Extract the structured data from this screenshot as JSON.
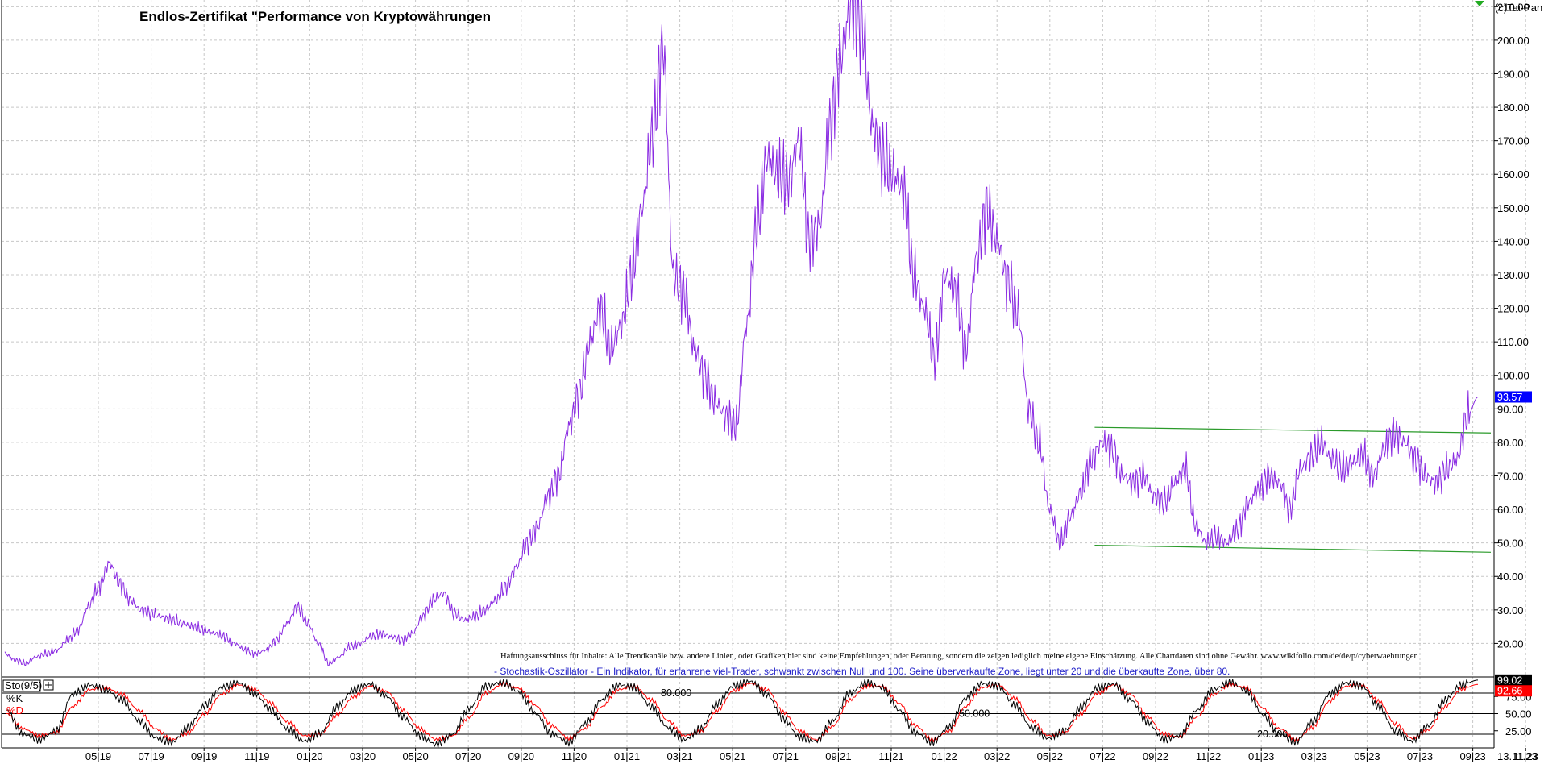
{
  "header": {
    "title": "Endlos-Zertifikat \"Performance von Kryptowährungen",
    "copyright": "(c)Tai-Pan"
  },
  "disclaimer": "Haftungsausschluss für Inhalte: Alle Trendkanäle bzw. andere Linien, oder Grafiken hier sind keine Empfehlungen, oder Beratung, sondern die zeigen lediglich meine eigene Einschätzung. Alle Chartdaten sind ohne Gewähr.  www.wikifolio.com/de/de/p/cyberwaehrungen",
  "indicator_note": "- Stochastik-Oszillator - Ein Indikator, für erfahrene viel-Trader, schwankt zwischen Null und 100. Seine überverkaufte Zone, liegt unter 20 und die überkaufte Zone, über 80.",
  "colors": {
    "price": "#8a2be2",
    "trendline": "#2a9a2a",
    "current_line": "#0000ff",
    "k_line": "#000000",
    "d_line": "#ff0000",
    "grid": "#c8c8c8"
  },
  "chart_data": [
    {
      "type": "line",
      "title": "Endlos-Zertifikat \"Performance von Kryptowährungen",
      "x_start": "03/2019",
      "x_end": "13.11.23",
      "x_tick_labels": [
        "05|19",
        "07|19",
        "09|19",
        "11|19",
        "01|20",
        "03|20",
        "05|20",
        "07|20",
        "09|20",
        "11|20",
        "01|21",
        "03|21",
        "05|21",
        "07|21",
        "09|21",
        "11|21",
        "01|22",
        "03|22",
        "05|22",
        "07|22",
        "09|22",
        "11|22",
        "01|23",
        "03|23",
        "05|23",
        "07|23",
        "09|23",
        "11|23"
      ],
      "x_end_label": "13.11.23",
      "ylim": [
        10,
        212
      ],
      "y_ticks": [
        20,
        30,
        40,
        50,
        60,
        70,
        80,
        90,
        100,
        110,
        120,
        130,
        140,
        150,
        160,
        170,
        180,
        190,
        200,
        210
      ],
      "y_tick_labels": [
        "20.00",
        "30.00",
        "40.00",
        "50.00",
        "60.00",
        "70.00",
        "80.00",
        "90.00",
        "100.00",
        "110.00",
        "120.00",
        "130.00",
        "140.00",
        "150.00",
        "160.00",
        "170.00",
        "180.00",
        "190.00",
        "200.00",
        "210.00"
      ],
      "grid": true,
      "current_value": 93.57,
      "current_label": "93.57",
      "series": [
        {
          "values": [
            17,
            15,
            14,
            16,
            17,
            18,
            21,
            24,
            31,
            37,
            44,
            38,
            33,
            30,
            29,
            28,
            27,
            26,
            25,
            24,
            23,
            22,
            20,
            18,
            17,
            18,
            21,
            26,
            31,
            26,
            20,
            14,
            16,
            19,
            20,
            22,
            23,
            22,
            21,
            23,
            28,
            33,
            35,
            29,
            27,
            28,
            30,
            33,
            37,
            43,
            50,
            55,
            64,
            70,
            85,
            95,
            110,
            120,
            108,
            115,
            130,
            150,
            172,
            198,
            130,
            125,
            108,
            100,
            92,
            88,
            85,
            115,
            145,
            165,
            160,
            158,
            170,
            140,
            145,
            175,
            195,
            210,
            205,
            175,
            165,
            160,
            155,
            130,
            120,
            105,
            130,
            125,
            108,
            135,
            150,
            140,
            128,
            118,
            90,
            80,
            60,
            50,
            58,
            65,
            75,
            80,
            78,
            70,
            68,
            70,
            64,
            62,
            68,
            72,
            55,
            50,
            52,
            50,
            54,
            62,
            66,
            70,
            68,
            60,
            72,
            76,
            80,
            75,
            72,
            74,
            76,
            70,
            78,
            83,
            80,
            75,
            70,
            68,
            72,
            75,
            88,
            93.57
          ]
        },
        {
          "name": "",
          "type": "trendline",
          "points": [
            [
              "07/2022",
              84.5
            ],
            [
              "11/2023",
              82.8
            ]
          ]
        },
        {
          "name": "",
          "type": "trendline",
          "points": [
            [
              "07/2022",
              49.3
            ],
            [
              "11/2023",
              47.2
            ]
          ]
        }
      ]
    },
    {
      "type": "line",
      "title": "",
      "ylim": [
        0,
        100
      ],
      "levels": [
        20,
        50,
        80
      ],
      "level_labels": [
        "20.000",
        "50.000",
        "80.000"
      ],
      "y_tick_labels": [
        "25.00",
        "50.00",
        "75.00"
      ],
      "legend": [
        "Sto(9/5)",
        "%K",
        "%D"
      ],
      "current_k": 99.02,
      "current_d": 92.66,
      "current_k_label": "99.02",
      "current_d_label": "92.66",
      "series": [
        {
          "name": "%K",
          "values": [
            55,
            20,
            12,
            25,
            78,
            92,
            85,
            70,
            40,
            15,
            8,
            30,
            62,
            88,
            95,
            80,
            55,
            28,
            10,
            22,
            60,
            85,
            93,
            75,
            45,
            18,
            5,
            20,
            58,
            90,
            96,
            82,
            50,
            20,
            8,
            35,
            70,
            92,
            88,
            60,
            30,
            12,
            28,
            65,
            91,
            97,
            78,
            42,
            15,
            10,
            40,
            80,
            95,
            88,
            55,
            22,
            8,
            30,
            72,
            94,
            90,
            62,
            30,
            14,
            25,
            60,
            88,
            93,
            70,
            38,
            12,
            18,
            55,
            85,
            96,
            84,
            48,
            20,
            9,
            38,
            78,
            95,
            90,
            60,
            25,
            10,
            32,
            70,
            92,
            99
          ]
        },
        {
          "name": "%D",
          "values": [
            50,
            28,
            18,
            22,
            60,
            85,
            88,
            78,
            55,
            28,
            12,
            22,
            50,
            78,
            92,
            86,
            65,
            38,
            18,
            20,
            48,
            75,
            90,
            82,
            55,
            28,
            12,
            18,
            45,
            80,
            93,
            87,
            62,
            32,
            14,
            28,
            60,
            85,
            90,
            70,
            40,
            18,
            24,
            55,
            84,
            94,
            85,
            52,
            24,
            12,
            32,
            70,
            90,
            90,
            65,
            32,
            12,
            24,
            60,
            88,
            92,
            72,
            40,
            18,
            22,
            50,
            80,
            92,
            78,
            46,
            20,
            16,
            45,
            78,
            92,
            88,
            58,
            28,
            12,
            30,
            68,
            90,
            92,
            68,
            35,
            14,
            26,
            60,
            86,
            92.66
          ]
        }
      ]
    }
  ]
}
